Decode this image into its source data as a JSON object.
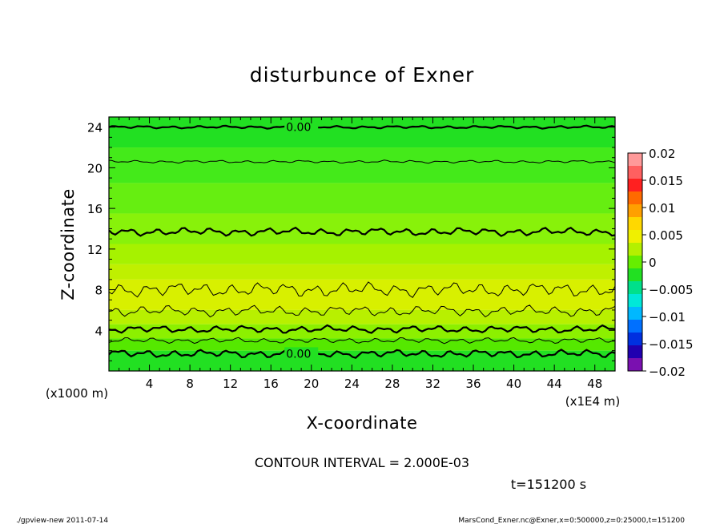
{
  "chart_data": {
    "type": "contour",
    "title": "disturbunce of Exner",
    "xlabel": "X-coordinate",
    "ylabel": "Z-coordinate",
    "x_unit_left": "(x1000 m)",
    "x_unit_right": "(x1E4 m)",
    "xlim": [
      0,
      50
    ],
    "ylim": [
      0,
      25
    ],
    "x_ticks": [
      "4",
      "8",
      "12",
      "16",
      "20",
      "24",
      "28",
      "32",
      "36",
      "40",
      "44",
      "48"
    ],
    "y_ticks": [
      "4",
      "8",
      "12",
      "16",
      "20",
      "24"
    ],
    "colorbar_ticks": [
      "0.02",
      "0.015",
      "0.01",
      "0.005",
      "0",
      "−0.005",
      "−0.01",
      "−0.015",
      "−0.02"
    ],
    "colorbar_range": [
      -0.02,
      0.02
    ],
    "contour_interval_text": "CONTOUR INTERVAL = 2.000E-03",
    "time_text": "t=151200 s",
    "contour_labels": [
      {
        "text": "0.00",
        "x": 17.5,
        "z": 24.0
      },
      {
        "text": "0.00",
        "x": 17.5,
        "z": 1.7
      }
    ],
    "contours": [
      {
        "z": 24.0,
        "amp": 0.08,
        "thick": true
      },
      {
        "z": 20.6,
        "amp": 0.08,
        "thick": false
      },
      {
        "z": 13.7,
        "amp": 0.22,
        "thick": true
      },
      {
        "z": 8.0,
        "amp": 0.4,
        "thick": false
      },
      {
        "z": 5.9,
        "amp": 0.3,
        "thick": false
      },
      {
        "z": 4.1,
        "amp": 0.2,
        "thick": true
      },
      {
        "z": 3.0,
        "amp": 0.16,
        "thick": false
      },
      {
        "z": 1.7,
        "amp": 0.22,
        "thick": true
      }
    ],
    "fill_bands": [
      {
        "z0": 22.0,
        "z1": 25.0,
        "color": "#22e022"
      },
      {
        "z0": 18.5,
        "z1": 22.0,
        "color": "#44ea1a"
      },
      {
        "z0": 15.5,
        "z1": 18.5,
        "color": "#66ee11"
      },
      {
        "z0": 12.5,
        "z1": 15.5,
        "color": "#88f20a"
      },
      {
        "z0": 10.5,
        "z1": 12.5,
        "color": "#a6f200"
      },
      {
        "z0": 9.0,
        "z1": 10.5,
        "color": "#bff000"
      },
      {
        "z0": 6.0,
        "z1": 9.0,
        "color": "#d8f000"
      },
      {
        "z0": 4.6,
        "z1": 6.0,
        "color": "#b8f000"
      },
      {
        "z0": 3.2,
        "z1": 4.6,
        "color": "#8cf000"
      },
      {
        "z0": 2.0,
        "z1": 3.2,
        "color": "#55e800"
      },
      {
        "z0": 0.0,
        "z1": 2.0,
        "color": "#22e022"
      }
    ]
  },
  "footer": {
    "left": "./gpview-new  2011-07-14",
    "right": "MarsCond_Exner.nc@Exner,x=0:500000,z=0:25000,t=151200"
  }
}
